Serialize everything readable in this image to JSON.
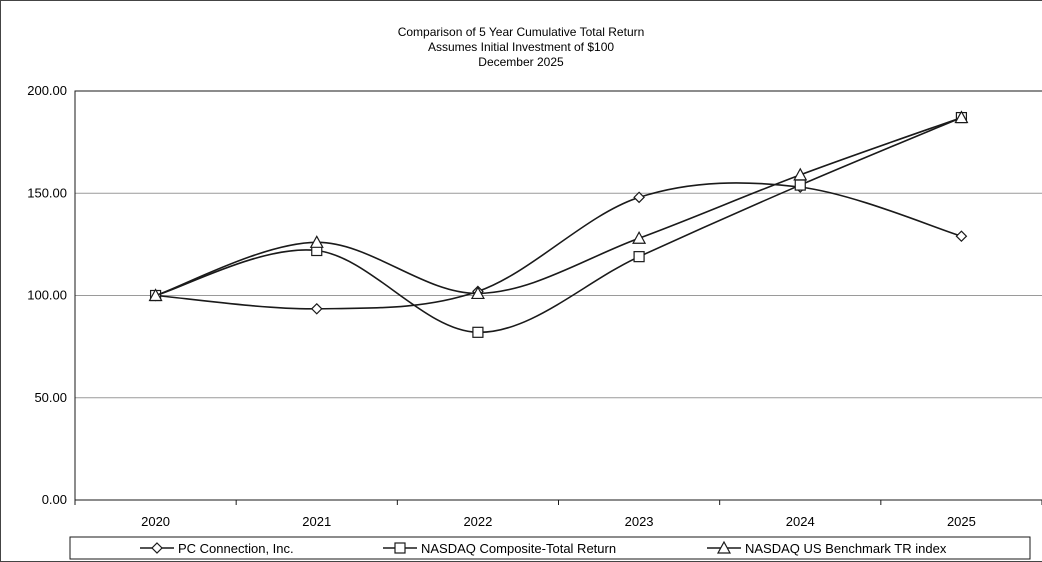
{
  "chart_data": {
    "type": "line",
    "title": [
      "Comparison of 5 Year Cumulative Total Return",
      "Assumes Initial Investment of $100",
      "December 2025"
    ],
    "categories": [
      "2020",
      "2021",
      "2022",
      "2023",
      "2024",
      "2025"
    ],
    "y_ticks": [
      "0.00",
      "50.00",
      "100.00",
      "150.00",
      "200.00"
    ],
    "ylim": [
      0,
      200
    ],
    "grid": "horizontal",
    "legend_position": "bottom",
    "series": [
      {
        "name": "PC Connection, Inc.",
        "marker": "diamond",
        "values": [
          100,
          93.5,
          102,
          148,
          153,
          129
        ]
      },
      {
        "name": "NASDAQ Composite-Total Return",
        "marker": "square",
        "values": [
          100,
          122,
          82,
          119,
          154,
          187
        ]
      },
      {
        "name": "NASDAQ US Benchmark TR index",
        "marker": "triangle",
        "values": [
          100,
          126,
          101,
          128,
          159,
          187
        ]
      }
    ],
    "colors": {
      "line": "#1a1a1a",
      "grid": "#9a9a9a",
      "background": "#ffffff"
    }
  }
}
